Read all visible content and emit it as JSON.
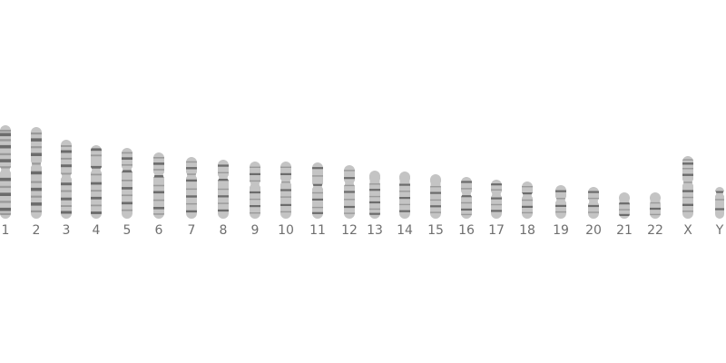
{
  "colors": {
    "background": "#ffffff",
    "chromosome_fill": "#c4c4c4",
    "band_dark": "#6c6c6c",
    "band_medium": "#9a9a9a",
    "label": "#6f6f6f"
  },
  "chromosomes": [
    {
      "label": "1",
      "bands": [
        0.06,
        "m",
        0.1,
        "d",
        0.16,
        "m",
        0.23,
        "d",
        0.31,
        "m",
        0.38,
        "d",
        0.45,
        "m",
        0.58,
        "d",
        0.66,
        "m",
        0.74,
        "d",
        0.82,
        "m",
        0.9,
        "d",
        0.95,
        "m"
      ]
    },
    {
      "label": "2",
      "bands": [
        0.07,
        "m",
        0.14,
        "d",
        0.22,
        "m",
        0.3,
        "d",
        0.4,
        "m",
        0.5,
        "d",
        0.6,
        "m",
        0.68,
        "d",
        0.76,
        "m",
        0.84,
        "d",
        0.92,
        "m"
      ]
    },
    {
      "label": "3",
      "bands": [
        0.08,
        "m",
        0.15,
        "d",
        0.24,
        "m",
        0.33,
        "d",
        0.43,
        "m",
        0.56,
        "d",
        0.65,
        "m",
        0.75,
        "d",
        0.84,
        "m",
        0.92,
        "d"
      ]
    },
    {
      "label": "4",
      "bands": [
        0.06,
        "d",
        0.14,
        "m",
        0.3,
        "d",
        0.4,
        "m",
        0.52,
        "d",
        0.62,
        "m",
        0.72,
        "d",
        0.82,
        "m",
        0.92,
        "d"
      ]
    },
    {
      "label": "5",
      "bands": [
        0.07,
        "m",
        0.15,
        "d",
        0.24,
        "m",
        0.33,
        "d",
        0.46,
        "m",
        0.57,
        "d",
        0.67,
        "m",
        0.78,
        "d",
        0.88,
        "m"
      ]
    },
    {
      "label": "6",
      "bands": [
        0.08,
        "m",
        0.17,
        "d",
        0.26,
        "m",
        0.36,
        "d",
        0.5,
        "m",
        0.6,
        "d",
        0.72,
        "m",
        0.84,
        "d",
        0.93,
        "m"
      ]
    },
    {
      "label": "7",
      "bands": [
        0.08,
        "m",
        0.18,
        "d",
        0.28,
        "m",
        0.38,
        "d",
        0.52,
        "m",
        0.64,
        "d",
        0.76,
        "m",
        0.88,
        "d"
      ]
    },
    {
      "label": "8",
      "bands": [
        0.1,
        "d",
        0.22,
        "m",
        0.34,
        "d",
        0.5,
        "m",
        0.62,
        "d",
        0.74,
        "m",
        0.86,
        "d"
      ]
    },
    {
      "label": "9",
      "bands": [
        0.1,
        "m",
        0.22,
        "d",
        0.34,
        "m",
        0.54,
        "d",
        0.66,
        "m",
        0.78,
        "d",
        0.9,
        "m"
      ]
    },
    {
      "label": "10",
      "bands": [
        0.1,
        "m",
        0.22,
        "d",
        0.36,
        "m",
        0.5,
        "d",
        0.62,
        "m",
        0.76,
        "d",
        0.88,
        "m"
      ]
    },
    {
      "label": "11",
      "bands": [
        0.1,
        "d",
        0.24,
        "m",
        0.4,
        "d",
        0.54,
        "m",
        0.66,
        "d",
        0.8,
        "m",
        0.9,
        "d"
      ]
    },
    {
      "label": "12",
      "bands": [
        0.1,
        "m",
        0.24,
        "d",
        0.38,
        "m",
        0.5,
        "d",
        0.64,
        "m",
        0.78,
        "d",
        0.9,
        "m"
      ]
    },
    {
      "label": "13",
      "bands": [
        0.28,
        "m",
        0.4,
        "d",
        0.54,
        "m",
        0.66,
        "d",
        0.8,
        "m",
        0.9,
        "d"
      ]
    },
    {
      "label": "14",
      "bands": [
        0.28,
        "d",
        0.42,
        "m",
        0.56,
        "d",
        0.7,
        "m",
        0.84,
        "d"
      ]
    },
    {
      "label": "15",
      "bands": [
        0.28,
        "m",
        0.42,
        "d",
        0.58,
        "m",
        0.72,
        "d",
        0.86,
        "m"
      ]
    },
    {
      "label": "16",
      "bands": [
        0.12,
        "d",
        0.28,
        "m",
        0.46,
        "d",
        0.62,
        "m",
        0.78,
        "d",
        0.9,
        "m"
      ]
    },
    {
      "label": "17",
      "bands": [
        0.12,
        "d",
        0.26,
        "m",
        0.48,
        "d",
        0.64,
        "m",
        0.8,
        "d"
      ]
    },
    {
      "label": "18",
      "bands": [
        0.14,
        "m",
        0.32,
        "d",
        0.5,
        "m",
        0.68,
        "d",
        0.84,
        "m"
      ]
    },
    {
      "label": "19",
      "bands": [
        0.18,
        "d",
        0.4,
        "m",
        0.62,
        "d",
        0.8,
        "m"
      ]
    },
    {
      "label": "20",
      "bands": [
        0.16,
        "d",
        0.36,
        "m",
        0.6,
        "d",
        0.8,
        "m"
      ]
    },
    {
      "label": "21",
      "bands": [
        0.42,
        "d",
        0.66,
        "m",
        0.86,
        "d"
      ]
    },
    {
      "label": "22",
      "bands": [
        0.4,
        "m",
        0.62,
        "d",
        0.84,
        "m"
      ]
    },
    {
      "label": "X",
      "bands": [
        0.06,
        "m",
        0.12,
        "d",
        0.2,
        "m",
        0.3,
        "d",
        0.42,
        "m",
        0.56,
        "d",
        0.66,
        "m",
        0.78,
        "d",
        0.88,
        "m"
      ]
    },
    {
      "label": "Y",
      "bands": [
        0.16,
        "d",
        0.4,
        "m",
        0.7,
        "d"
      ]
    }
  ]
}
